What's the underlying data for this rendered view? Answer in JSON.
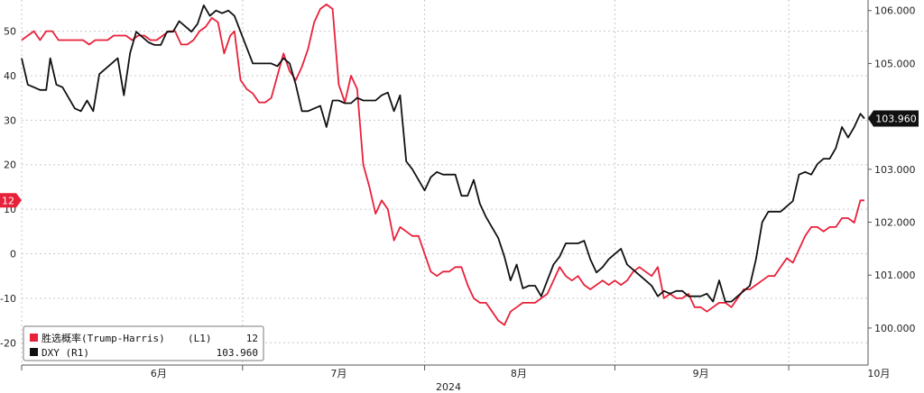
{
  "chart_data": {
    "type": "line",
    "title": "",
    "xlabel": "2024",
    "x_ticks": [
      "6月",
      "7月",
      "8月",
      "9月",
      "10月"
    ],
    "left_axis": {
      "ticks": [
        -20,
        -10,
        0,
        10,
        20,
        30,
        40,
        50
      ],
      "range": [
        -25,
        57
      ]
    },
    "right_axis": {
      "ticks": [
        "100.000",
        "101.000",
        "102.000",
        "103.000",
        "104.000",
        "105.000",
        "106.000"
      ],
      "range": [
        99.3,
        106.2
      ]
    },
    "grid": true,
    "legend_position": "bottom-left",
    "series": [
      {
        "name": "胜选概率(Trump-Harris)",
        "axis": "L1",
        "color": "#e8213a",
        "last_value": "12",
        "last_label": "12",
        "values": [
          [
            0,
            48
          ],
          [
            3,
            49
          ],
          [
            6,
            50
          ],
          [
            9,
            48
          ],
          [
            12,
            50
          ],
          [
            15,
            50
          ],
          [
            18,
            48
          ],
          [
            21,
            48
          ],
          [
            24,
            48
          ],
          [
            27,
            48
          ],
          [
            30,
            48
          ],
          [
            33,
            47
          ],
          [
            36,
            48
          ],
          [
            39,
            48
          ],
          [
            42,
            48
          ],
          [
            45,
            49
          ],
          [
            48,
            49
          ],
          [
            51,
            49
          ],
          [
            54,
            48
          ],
          [
            57,
            49
          ],
          [
            60,
            49
          ],
          [
            63,
            48
          ],
          [
            66,
            48
          ],
          [
            69,
            49
          ],
          [
            72,
            50
          ],
          [
            75,
            50
          ],
          [
            78,
            47
          ],
          [
            81,
            47
          ],
          [
            84,
            48
          ],
          [
            87,
            50
          ],
          [
            90,
            51
          ],
          [
            93,
            53
          ],
          [
            96,
            52
          ],
          [
            99,
            45
          ],
          [
            102,
            49
          ],
          [
            104,
            50
          ],
          [
            107,
            39
          ],
          [
            110,
            37
          ],
          [
            113,
            36
          ],
          [
            116,
            34
          ],
          [
            119,
            34
          ],
          [
            122,
            35
          ],
          [
            125,
            40
          ],
          [
            128,
            45
          ],
          [
            131,
            41
          ],
          [
            134,
            39
          ],
          [
            137,
            42
          ],
          [
            140,
            46
          ],
          [
            143,
            52
          ],
          [
            146,
            55
          ],
          [
            149,
            56
          ],
          [
            152,
            55
          ],
          [
            155,
            38
          ],
          [
            158,
            34
          ],
          [
            161,
            40
          ],
          [
            164,
            37
          ],
          [
            167,
            20
          ],
          [
            170,
            15
          ],
          [
            173,
            9
          ],
          [
            176,
            12
          ],
          [
            179,
            10
          ],
          [
            182,
            3
          ],
          [
            185,
            6
          ],
          [
            188,
            5
          ],
          [
            191,
            4
          ],
          [
            194,
            4
          ],
          [
            197,
            0
          ],
          [
            200,
            -4
          ],
          [
            203,
            -5
          ],
          [
            206,
            -4
          ],
          [
            209,
            -4
          ],
          [
            212,
            -3
          ],
          [
            215,
            -3
          ],
          [
            218,
            -7
          ],
          [
            221,
            -10
          ],
          [
            224,
            -11
          ],
          [
            227,
            -11
          ],
          [
            230,
            -13
          ],
          [
            233,
            -15
          ],
          [
            236,
            -16
          ],
          [
            239,
            -13
          ],
          [
            242,
            -12
          ],
          [
            245,
            -11
          ],
          [
            248,
            -11
          ],
          [
            251,
            -11
          ],
          [
            254,
            -10
          ],
          [
            257,
            -9
          ],
          [
            260,
            -6
          ],
          [
            263,
            -3
          ],
          [
            266,
            -5
          ],
          [
            269,
            -6
          ],
          [
            272,
            -5
          ],
          [
            275,
            -7
          ],
          [
            278,
            -8
          ],
          [
            281,
            -7
          ],
          [
            284,
            -6
          ],
          [
            287,
            -7
          ],
          [
            290,
            -6
          ],
          [
            293,
            -7
          ],
          [
            296,
            -6
          ],
          [
            299,
            -4
          ],
          [
            302,
            -3
          ],
          [
            305,
            -4
          ],
          [
            308,
            -5
          ],
          [
            311,
            -3
          ],
          [
            314,
            -10
          ],
          [
            317,
            -9
          ],
          [
            320,
            -10
          ],
          [
            323,
            -10
          ],
          [
            326,
            -9
          ],
          [
            329,
            -12
          ],
          [
            332,
            -12
          ],
          [
            335,
            -13
          ],
          [
            338,
            -12
          ],
          [
            341,
            -11
          ],
          [
            344,
            -11
          ],
          [
            347,
            -12
          ],
          [
            350,
            -10
          ],
          [
            353,
            -8
          ],
          [
            356,
            -8
          ],
          [
            359,
            -7
          ],
          [
            362,
            -6
          ],
          [
            365,
            -5
          ],
          [
            368,
            -5
          ],
          [
            371,
            -3
          ],
          [
            374,
            -1
          ],
          [
            377,
            -2
          ],
          [
            380,
            1
          ],
          [
            383,
            4
          ],
          [
            386,
            6
          ],
          [
            389,
            6
          ],
          [
            392,
            5
          ],
          [
            395,
            6
          ],
          [
            398,
            6
          ],
          [
            401,
            8
          ],
          [
            404,
            8
          ],
          [
            407,
            7
          ],
          [
            410,
            12
          ],
          [
            412,
            12
          ]
        ]
      },
      {
        "name": "DXY (R1)",
        "axis": "R1",
        "color": "#111111",
        "last_value": "103.960",
        "last_label": "103.960",
        "values": [
          [
            0,
            105.1
          ],
          [
            3,
            104.6
          ],
          [
            6,
            104.55
          ],
          [
            9,
            104.5
          ],
          [
            12,
            104.5
          ],
          [
            14,
            105.1
          ],
          [
            17,
            104.6
          ],
          [
            20,
            104.55
          ],
          [
            23,
            104.35
          ],
          [
            26,
            104.15
          ],
          [
            29,
            104.1
          ],
          [
            32,
            104.3
          ],
          [
            35,
            104.1
          ],
          [
            38,
            104.8
          ],
          [
            41,
            104.9
          ],
          [
            44,
            105.0
          ],
          [
            47,
            105.1
          ],
          [
            50,
            104.4
          ],
          [
            53,
            105.2
          ],
          [
            56,
            105.6
          ],
          [
            59,
            105.5
          ],
          [
            62,
            105.4
          ],
          [
            65,
            105.35
          ],
          [
            68,
            105.35
          ],
          [
            71,
            105.6
          ],
          [
            74,
            105.6
          ],
          [
            77,
            105.8
          ],
          [
            80,
            105.7
          ],
          [
            83,
            105.6
          ],
          [
            86,
            105.75
          ],
          [
            89,
            106.1
          ],
          [
            92,
            105.9
          ],
          [
            95,
            106.0
          ],
          [
            98,
            105.95
          ],
          [
            101,
            106.0
          ],
          [
            104,
            105.9
          ],
          [
            107,
            105.6
          ],
          [
            110,
            105.3
          ],
          [
            113,
            105.0
          ],
          [
            116,
            105.0
          ],
          [
            119,
            105.0
          ],
          [
            122,
            105.0
          ],
          [
            125,
            104.95
          ],
          [
            128,
            105.1
          ],
          [
            131,
            105.0
          ],
          [
            134,
            104.6
          ],
          [
            137,
            104.1
          ],
          [
            140,
            104.1
          ],
          [
            143,
            104.15
          ],
          [
            146,
            104.2
          ],
          [
            149,
            103.8
          ],
          [
            152,
            104.3
          ],
          [
            155,
            104.3
          ],
          [
            158,
            104.25
          ],
          [
            161,
            104.25
          ],
          [
            164,
            104.35
          ],
          [
            167,
            104.3
          ],
          [
            170,
            104.3
          ],
          [
            173,
            104.3
          ],
          [
            176,
            104.4
          ],
          [
            179,
            104.45
          ],
          [
            182,
            104.1
          ],
          [
            185,
            104.4
          ],
          [
            188,
            103.15
          ],
          [
            191,
            103.0
          ],
          [
            194,
            102.8
          ],
          [
            197,
            102.6
          ],
          [
            200,
            102.85
          ],
          [
            203,
            102.95
          ],
          [
            206,
            102.9
          ],
          [
            209,
            102.9
          ],
          [
            212,
            102.9
          ],
          [
            215,
            102.5
          ],
          [
            218,
            102.5
          ],
          [
            221,
            102.8
          ],
          [
            224,
            102.35
          ],
          [
            227,
            102.1
          ],
          [
            230,
            101.9
          ],
          [
            233,
            101.7
          ],
          [
            236,
            101.35
          ],
          [
            239,
            100.9
          ],
          [
            242,
            101.2
          ],
          [
            245,
            100.75
          ],
          [
            248,
            100.8
          ],
          [
            251,
            100.8
          ],
          [
            254,
            100.6
          ],
          [
            257,
            100.9
          ],
          [
            260,
            101.2
          ],
          [
            263,
            101.35
          ],
          [
            266,
            101.6
          ],
          [
            269,
            101.6
          ],
          [
            272,
            101.6
          ],
          [
            275,
            101.65
          ],
          [
            278,
            101.3
          ],
          [
            281,
            101.05
          ],
          [
            284,
            101.15
          ],
          [
            287,
            101.3
          ],
          [
            290,
            101.4
          ],
          [
            293,
            101.5
          ],
          [
            296,
            101.2
          ],
          [
            299,
            101.1
          ],
          [
            302,
            101.0
          ],
          [
            305,
            100.9
          ],
          [
            308,
            100.8
          ],
          [
            311,
            100.6
          ],
          [
            314,
            100.7
          ],
          [
            317,
            100.65
          ],
          [
            320,
            100.7
          ],
          [
            323,
            100.7
          ],
          [
            326,
            100.6
          ],
          [
            329,
            100.6
          ],
          [
            332,
            100.6
          ],
          [
            335,
            100.65
          ],
          [
            338,
            100.5
          ],
          [
            341,
            100.9
          ],
          [
            344,
            100.5
          ],
          [
            347,
            100.5
          ],
          [
            350,
            100.6
          ],
          [
            353,
            100.7
          ],
          [
            356,
            100.8
          ],
          [
            359,
            101.3
          ],
          [
            362,
            102.0
          ],
          [
            365,
            102.2
          ],
          [
            368,
            102.2
          ],
          [
            371,
            102.2
          ],
          [
            374,
            102.3
          ],
          [
            377,
            102.4
          ],
          [
            380,
            102.9
          ],
          [
            383,
            102.95
          ],
          [
            386,
            102.9
          ],
          [
            389,
            103.1
          ],
          [
            392,
            103.2
          ],
          [
            395,
            103.2
          ],
          [
            398,
            103.4
          ],
          [
            401,
            103.8
          ],
          [
            404,
            103.6
          ],
          [
            407,
            103.8
          ],
          [
            410,
            104.05
          ],
          [
            412,
            103.96
          ]
        ]
      }
    ]
  }
}
